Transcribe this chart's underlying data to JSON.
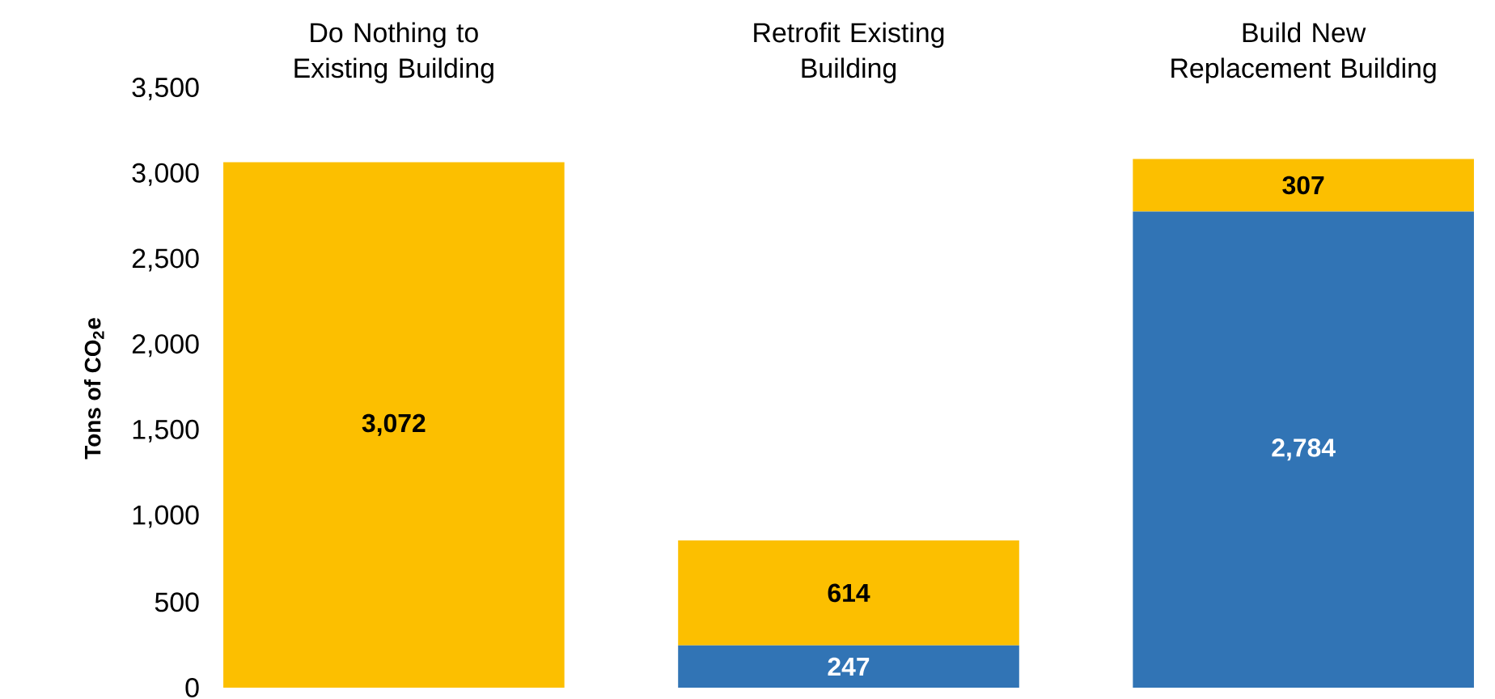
{
  "chart_data": {
    "type": "bar",
    "stacked": true,
    "ylabel": "Tons of CO$_{2}$e",
    "categories": [
      "Do Nothing to Existing Building",
      "Retrofit Existing Building",
      "Build New Replacement Building"
    ],
    "series": [
      {
        "color": "#3174b5",
        "values": [
          null,
          247,
          2784
        ],
        "value_labels": [
          null,
          "247",
          "2,784"
        ]
      },
      {
        "color": "#fcbf00",
        "values": [
          3072,
          614,
          307
        ],
        "value_labels": [
          "3,072",
          "614",
          "307"
        ]
      }
    ],
    "ylim": [
      0,
      3500
    ],
    "yticks": [
      0,
      500,
      {
        "value": 1000,
        "label": "1,000"
      },
      {
        "value": 1500,
        "label": "1,500"
      },
      {
        "value": 2000,
        "label": "2,000"
      },
      {
        "value": 2500,
        "label": "2,500"
      },
      {
        "value": 3000,
        "label": "3,000"
      },
      {
        "value": 3500,
        "label": "3,500"
      }
    ],
    "grid": false
  }
}
